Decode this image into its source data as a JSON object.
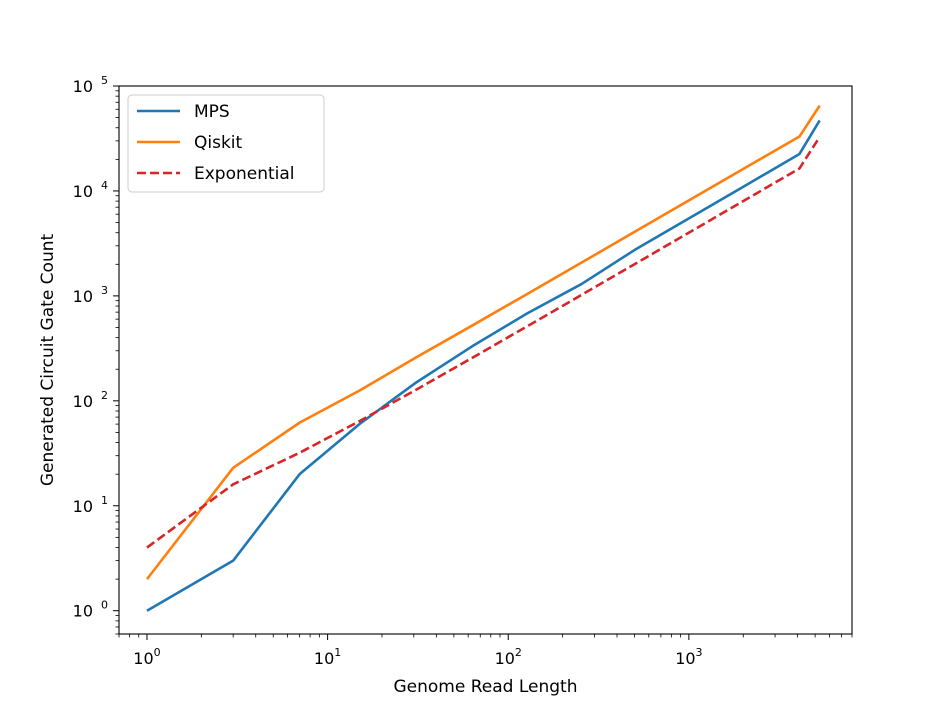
{
  "chart_data": {
    "type": "line",
    "xscale": "log",
    "yscale": "log",
    "xlabel": "Genome Read Length",
    "ylabel": "Generated Circuit Gate Count",
    "xlim": [
      0.7,
      8000
    ],
    "ylim": [
      0.6,
      100000
    ],
    "x_ticks": [
      {
        "value": 1,
        "base": "10",
        "exp": "0"
      },
      {
        "value": 10,
        "base": "10",
        "exp": "1"
      },
      {
        "value": 100,
        "base": "10",
        "exp": "2"
      },
      {
        "value": 1000,
        "base": "10",
        "exp": "3"
      }
    ],
    "y_ticks": [
      {
        "value": 1,
        "base": "10",
        "exp": "0"
      },
      {
        "value": 10,
        "base": "10",
        "exp": "1"
      },
      {
        "value": 100,
        "base": "10",
        "exp": "2"
      },
      {
        "value": 1000,
        "base": "10",
        "exp": "3"
      },
      {
        "value": 10000,
        "base": "10",
        "exp": "4"
      },
      {
        "value": 100000,
        "base": "10",
        "exp": "5"
      }
    ],
    "legend_position": "upper-left",
    "series": [
      {
        "name": "MPS",
        "color": "#1f77b4",
        "style": "solid",
        "x": [
          1,
          3,
          7,
          15,
          31,
          63,
          127,
          255,
          511,
          1023,
          2047,
          4095,
          5300
        ],
        "y": [
          1,
          3,
          20,
          60,
          150,
          330,
          680,
          1300,
          2800,
          5600,
          11200,
          22500,
          47000
        ]
      },
      {
        "name": "Qiskit",
        "color": "#ff7f0e",
        "style": "solid",
        "x": [
          1,
          3,
          7,
          15,
          31,
          63,
          127,
          255,
          511,
          1023,
          2047,
          4095,
          5300
        ],
        "y": [
          2,
          23,
          62,
          125,
          260,
          520,
          1040,
          2080,
          4160,
          8320,
          16600,
          33000,
          65000
        ]
      },
      {
        "name": "Exponential",
        "color": "#d62728",
        "style": "dashed",
        "x": [
          1,
          3,
          7,
          15,
          31,
          63,
          127,
          255,
          511,
          1023,
          2047,
          4095,
          5300
        ],
        "y": [
          4,
          16,
          32,
          64,
          128,
          256,
          512,
          1024,
          2048,
          4096,
          8192,
          16384,
          32768
        ]
      }
    ]
  }
}
